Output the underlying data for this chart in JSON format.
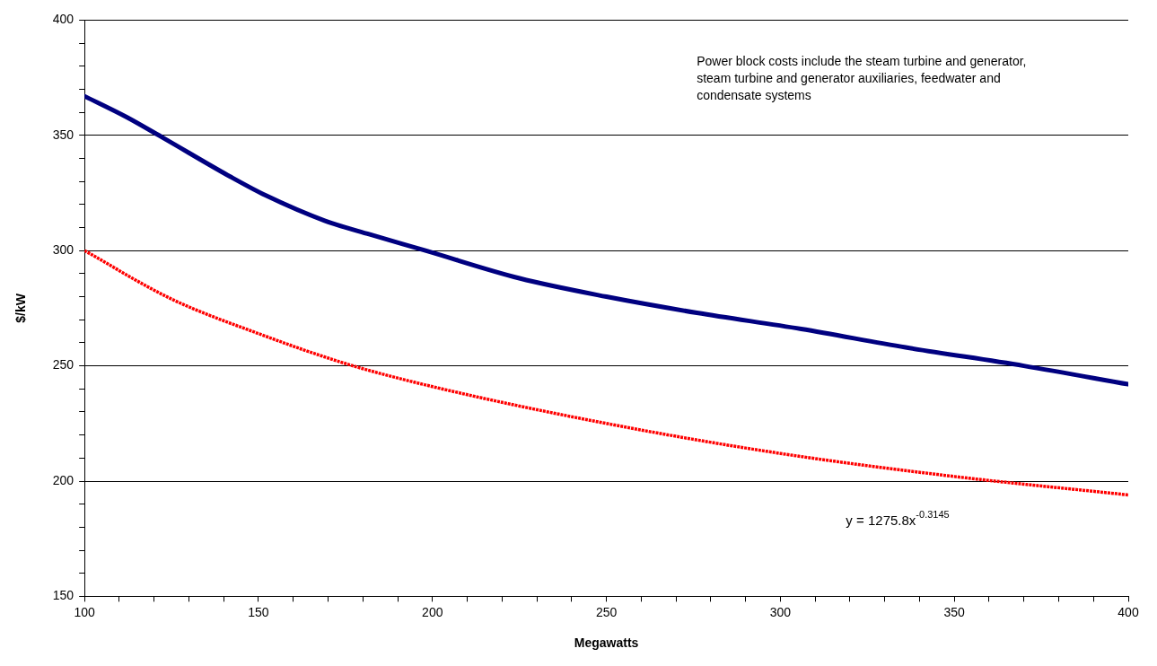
{
  "chart_data": {
    "type": "line",
    "xlabel": "Megawatts",
    "ylabel": "$/kW",
    "xlim": [
      100,
      400
    ],
    "xticks": [
      100,
      {
        "value": 110,
        "label": null
      },
      {
        "value": 120,
        "label": null
      },
      {
        "value": 130,
        "label": null
      },
      {
        "value": 140,
        "label": null
      },
      150,
      {
        "value": 160,
        "label": null
      },
      {
        "value": 170,
        "label": null
      },
      {
        "value": 180,
        "label": null
      },
      {
        "value": 190,
        "label": null
      },
      200,
      {
        "value": 210,
        "label": null
      },
      {
        "value": 220,
        "label": null
      },
      {
        "value": 230,
        "label": null
      },
      {
        "value": 240,
        "label": null
      },
      250,
      {
        "value": 260,
        "label": null
      },
      {
        "value": 270,
        "label": null
      },
      {
        "value": 280,
        "label": null
      },
      {
        "value": 290,
        "label": null
      },
      300,
      {
        "value": 310,
        "label": null
      },
      {
        "value": 320,
        "label": null
      },
      {
        "value": 330,
        "label": null
      },
      {
        "value": 340,
        "label": null
      },
      350,
      {
        "value": 360,
        "label": null
      },
      {
        "value": 370,
        "label": null
      },
      {
        "value": 380,
        "label": null
      },
      {
        "value": 390,
        "label": null
      },
      400
    ],
    "ylim": [
      150,
      400
    ],
    "yticks": [
      150,
      {
        "value": 160,
        "label": null
      },
      {
        "value": 170,
        "label": null
      },
      {
        "value": 180,
        "label": null
      },
      {
        "value": 190,
        "label": null
      },
      200,
      {
        "value": 210,
        "label": null
      },
      {
        "value": 220,
        "label": null
      },
      {
        "value": 230,
        "label": null
      },
      {
        "value": 240,
        "label": null
      },
      250,
      {
        "value": 260,
        "label": null
      },
      {
        "value": 270,
        "label": null
      },
      {
        "value": 280,
        "label": null
      },
      {
        "value": 290,
        "label": null
      },
      300,
      {
        "value": 310,
        "label": null
      },
      {
        "value": 320,
        "label": null
      },
      {
        "value": 330,
        "label": null
      },
      {
        "value": 340,
        "label": null
      },
      350,
      {
        "value": 360,
        "label": null
      },
      {
        "value": 370,
        "label": null
      },
      {
        "value": 380,
        "label": null
      },
      {
        "value": 390,
        "label": null
      },
      400
    ],
    "grid": "y",
    "legend": false,
    "annotations": [
      "Power block costs include the steam turbine and generator, steam turbine and generator auxiliaries, feedwater and condensate systems",
      "y = 1275.8x$^{-0.3145}$"
    ],
    "series": [
      {
        "color": "#000080",
        "line_style": "solid",
        "x": [
          100,
          112,
          122.5,
          142,
          152,
          169,
          182,
          198,
          225,
          250,
          276,
          306,
          336,
          370,
          400
        ],
        "values": [
          367,
          358,
          349,
          332,
          324,
          313,
          307,
          300,
          288,
          280,
          273,
          266,
          258,
          250,
          242
        ]
      },
      {
        "color": "#ff0000",
        "line_style": "dotted",
        "x": [
          100,
          125,
          150,
          175,
          200,
          250,
          300,
          350,
          400
        ],
        "values": [
          300,
          279,
          264,
          251,
          241,
          225,
          212,
          202,
          194
        ]
      }
    ]
  }
}
